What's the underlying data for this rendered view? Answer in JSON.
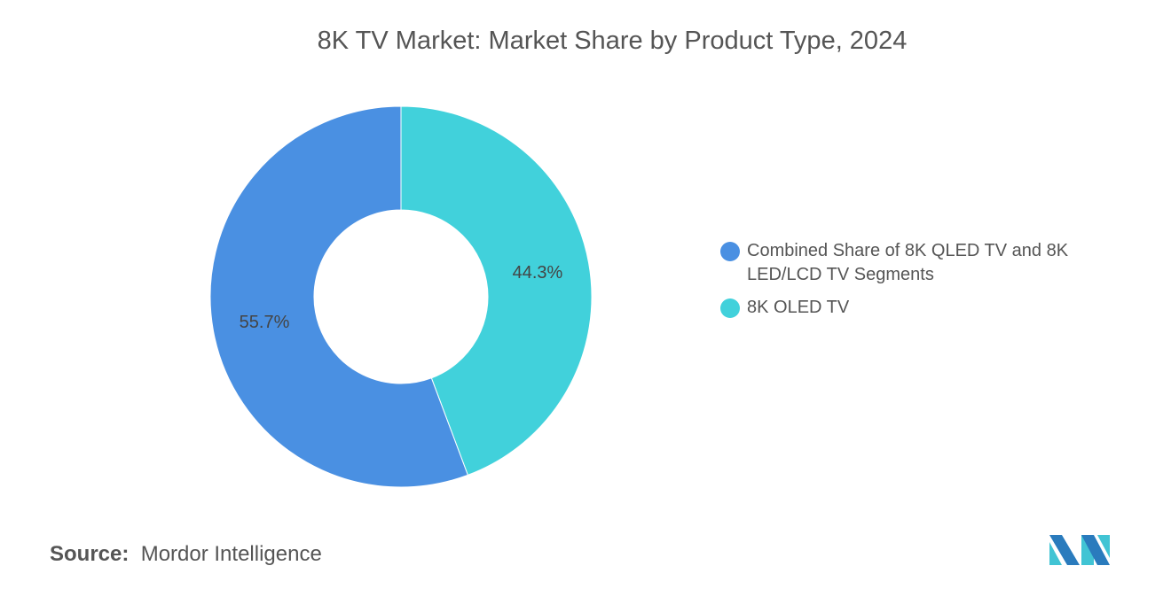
{
  "chart_data": {
    "type": "pie",
    "variant": "donut",
    "title": "8K TV Market: Market Share by Product Type, 2024",
    "slices": [
      {
        "label": "Combined Share of 8K QLED TV and 8K LED/LCD TV Segments",
        "value": 55.7,
        "display": "55.7%",
        "color": "#4a90e2"
      },
      {
        "label": "8K OLED TV",
        "value": 44.3,
        "display": "44.3%",
        "color": "#41d1db"
      }
    ],
    "legend_position": "right"
  },
  "source": {
    "label": "Source:",
    "value": "Mordor Intelligence"
  },
  "logo": "Mordor Intelligence logo"
}
